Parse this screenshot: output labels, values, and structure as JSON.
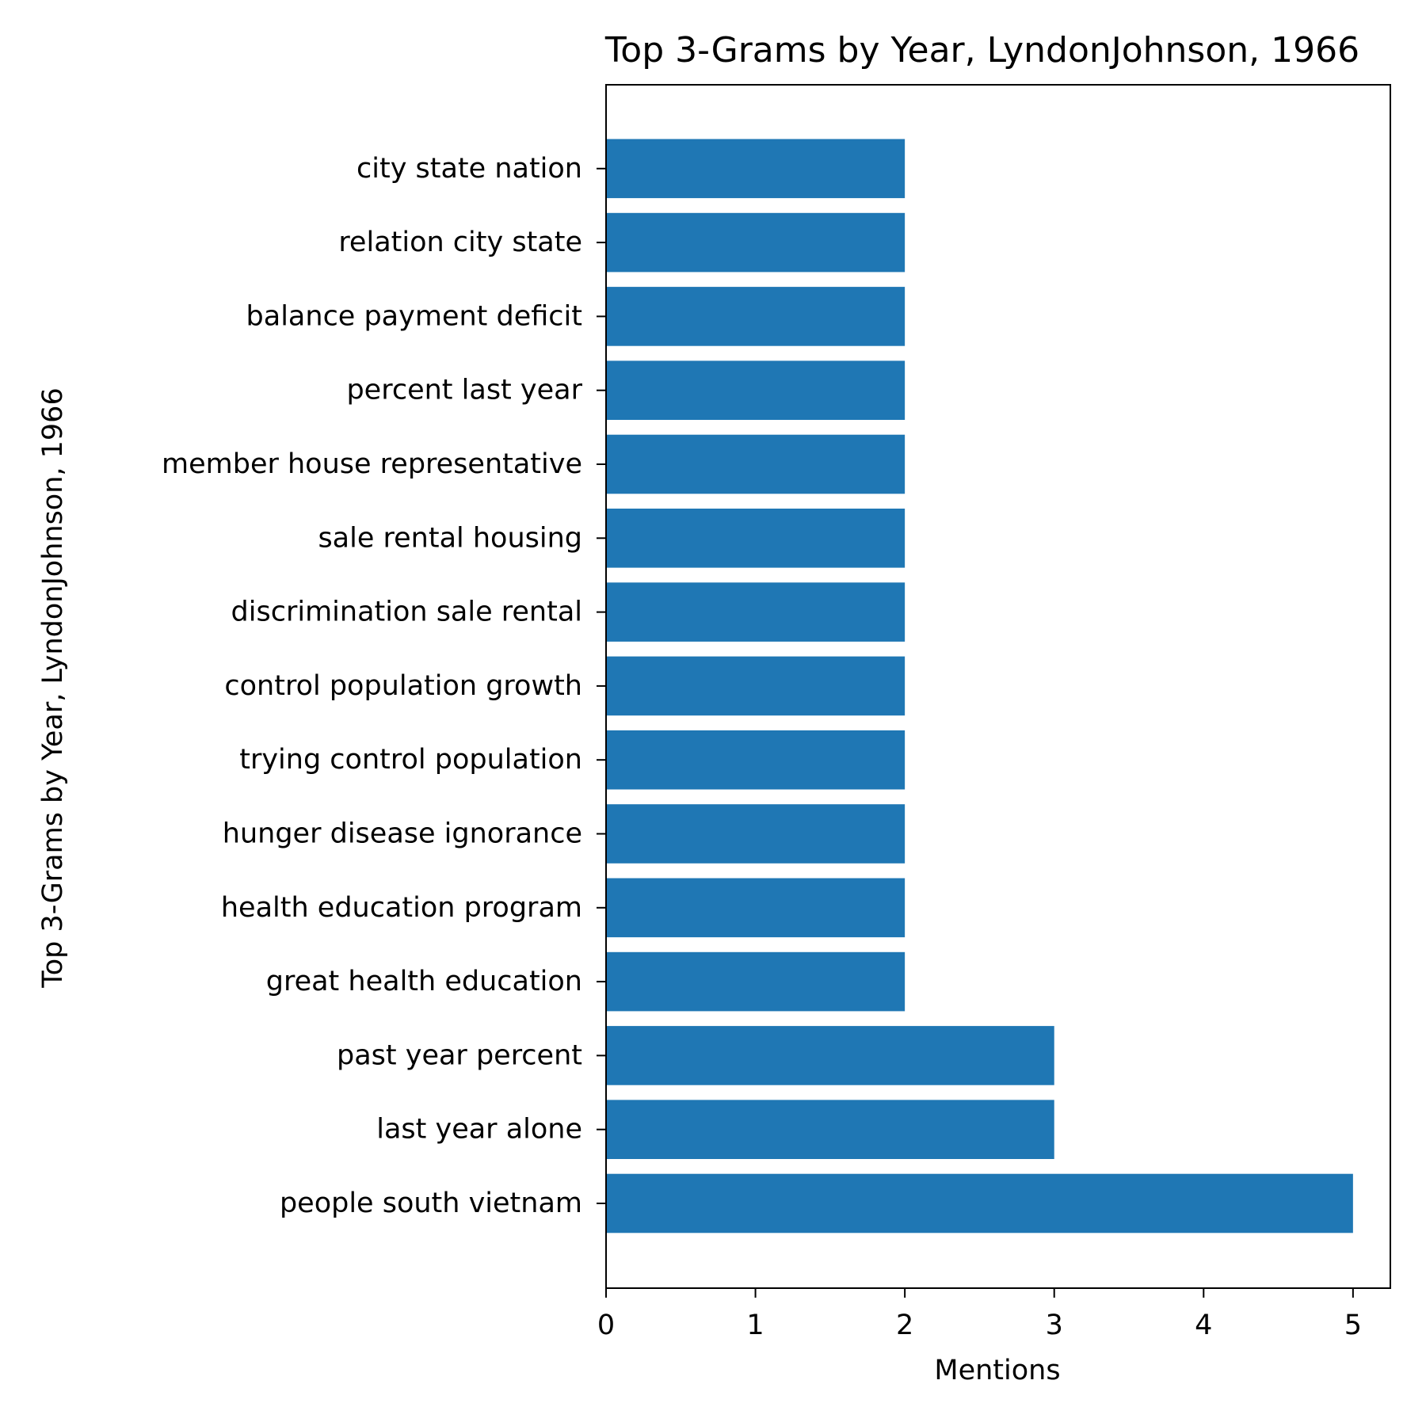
{
  "chart_data": {
    "type": "bar",
    "orientation": "horizontal",
    "title": "Top 3-Grams by Year, LyndonJohnson, 1966",
    "xlabel": "Mentions",
    "ylabel": "Top 3-Grams by Year, LyndonJohnson, 1966",
    "categories": [
      "people south vietnam",
      "last year alone",
      "past year percent",
      "great health education",
      "health education program",
      "hunger disease ignorance",
      "trying control population",
      "control population growth",
      "discrimination sale rental",
      "sale rental housing",
      "member house representative",
      "percent last year",
      "balance payment deficit",
      "relation city state",
      "city state nation"
    ],
    "values": [
      5,
      3,
      3,
      2,
      2,
      2,
      2,
      2,
      2,
      2,
      2,
      2,
      2,
      2,
      2
    ],
    "xlim": [
      0,
      5.25
    ],
    "xticks": [
      0,
      1,
      2,
      3,
      4,
      5
    ],
    "grid": false,
    "legend": false,
    "bar_color": "#1f77b4"
  }
}
